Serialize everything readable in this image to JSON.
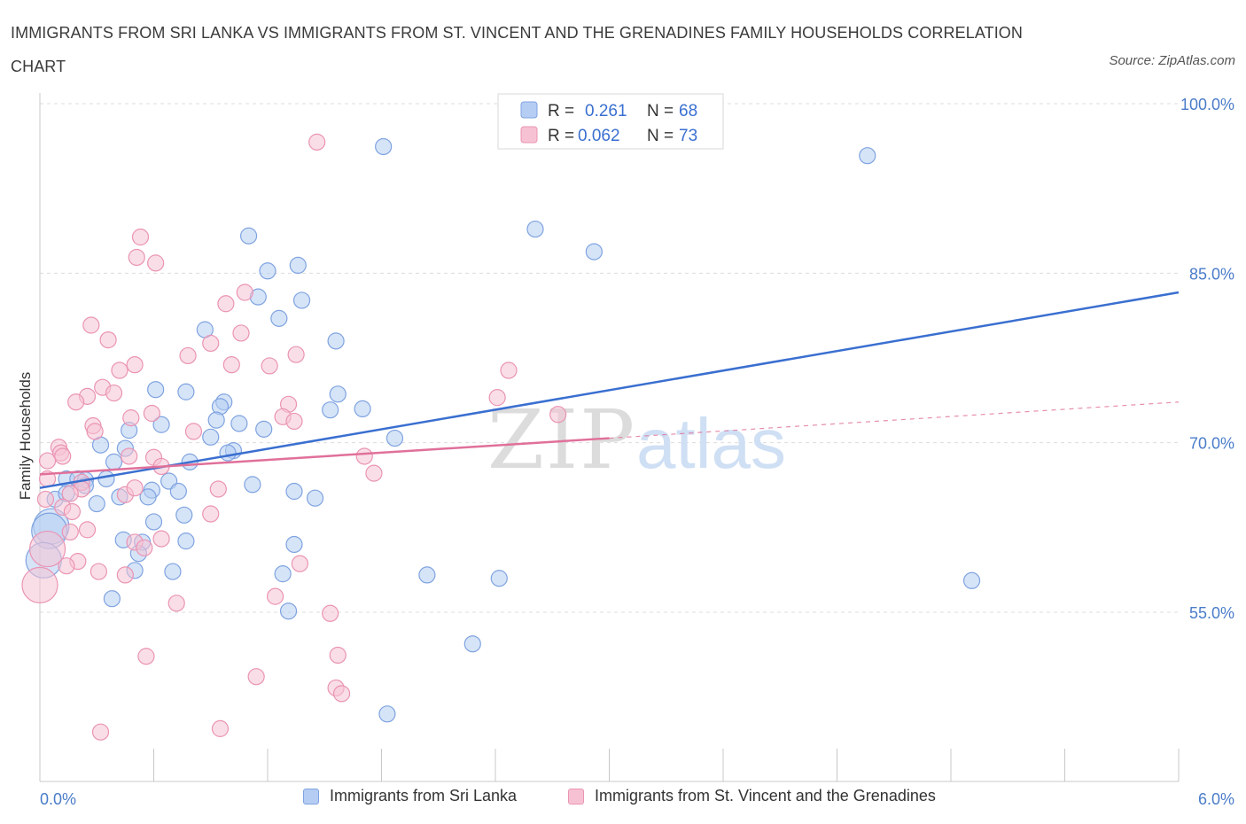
{
  "title": "IMMIGRANTS FROM SRI LANKA VS IMMIGRANTS FROM ST. VINCENT AND THE GRENADINES FAMILY HOUSEHOLDS CORRELATION CHART",
  "source": "Source: ZipAtlas.com",
  "watermark": {
    "zip": "ZIP",
    "atlas": "atlas"
  },
  "colors": {
    "blue": "#3a6fd0",
    "blue_fill": "#b5cdf3",
    "blue_stroke": "#7fa3e0",
    "pink": "#e0709a",
    "pink_fill": "#f6c2d3",
    "pink_stroke": "#ea94b3",
    "grid": "#dcdcdc",
    "tick_text": "#4a7cc9"
  },
  "legend": {
    "rows": [
      {
        "r_label": "R =",
        "r_value": "0.261",
        "n_label": "N =",
        "n_value": "68"
      },
      {
        "r_label": "R =",
        "r_value": "0.062",
        "n_label": "N =",
        "n_value": "73"
      }
    ]
  },
  "bottom_legend": [
    "Immigrants from Sri Lanka",
    "Immigrants from St. Vincent and the Grenadines"
  ],
  "chart_data": {
    "type": "scatter",
    "ylabel": "Family Households",
    "xlim": [
      0,
      6
    ],
    "ylim": [
      40,
      100
    ],
    "x_tick_labels": [
      {
        "value": 0,
        "label": "0.0%"
      },
      {
        "value": 6,
        "label": "6.0%"
      }
    ],
    "y_tick_labels": [
      {
        "value": 55,
        "label": "55.0%"
      },
      {
        "value": 70,
        "label": "70.0%"
      },
      {
        "value": 85,
        "label": "85.0%"
      },
      {
        "value": 100,
        "label": "100.0%"
      }
    ],
    "series": [
      {
        "name": "Immigrants from Sri Lanka",
        "color": "blue",
        "trend": {
          "x": [
            0,
            6
          ],
          "y": [
            66.0,
            83.3
          ]
        },
        "points": [
          [
            1.81,
            96.2
          ],
          [
            4.36,
            95.4
          ],
          [
            2.61,
            88.9
          ],
          [
            1.1,
            88.3
          ],
          [
            2.92,
            86.9
          ],
          [
            1.36,
            85.7
          ],
          [
            1.2,
            85.2
          ],
          [
            1.15,
            82.9
          ],
          [
            1.38,
            82.6
          ],
          [
            1.26,
            81.0
          ],
          [
            0.87,
            80.0
          ],
          [
            1.56,
            79.0
          ],
          [
            0.61,
            74.7
          ],
          [
            0.77,
            74.5
          ],
          [
            1.57,
            74.3
          ],
          [
            0.97,
            73.6
          ],
          [
            0.95,
            73.2
          ],
          [
            1.53,
            72.9
          ],
          [
            0.93,
            72.0
          ],
          [
            1.05,
            71.7
          ],
          [
            0.64,
            71.6
          ],
          [
            0.47,
            71.1
          ],
          [
            1.18,
            71.2
          ],
          [
            0.9,
            70.5
          ],
          [
            1.87,
            70.4
          ],
          [
            0.32,
            69.8
          ],
          [
            1.02,
            69.3
          ],
          [
            0.99,
            69.1
          ],
          [
            0.79,
            68.3
          ],
          [
            0.39,
            68.3
          ],
          [
            0.14,
            66.8
          ],
          [
            0.2,
            66.8
          ],
          [
            0.24,
            66.7
          ],
          [
            0.35,
            66.8
          ],
          [
            0.68,
            66.6
          ],
          [
            0.24,
            66.2
          ],
          [
            0.59,
            65.8
          ],
          [
            0.73,
            65.7
          ],
          [
            1.12,
            66.3
          ],
          [
            1.34,
            65.7
          ],
          [
            0.57,
            65.2
          ],
          [
            0.42,
            65.2
          ],
          [
            1.45,
            65.1
          ],
          [
            0.3,
            64.6
          ],
          [
            0.08,
            65.0
          ],
          [
            0.14,
            65.5
          ],
          [
            0.76,
            63.6
          ],
          [
            0.06,
            62.6
          ],
          [
            0.05,
            62.2
          ],
          [
            0.44,
            61.4
          ],
          [
            0.77,
            61.3
          ],
          [
            0.54,
            61.2
          ],
          [
            1.34,
            61.0
          ],
          [
            0.52,
            60.2
          ],
          [
            0.02,
            59.6
          ],
          [
            0.5,
            58.7
          ],
          [
            0.7,
            58.6
          ],
          [
            1.28,
            58.4
          ],
          [
            2.04,
            58.3
          ],
          [
            2.42,
            58.0
          ],
          [
            4.91,
            57.8
          ],
          [
            0.38,
            56.2
          ],
          [
            1.31,
            55.1
          ],
          [
            2.28,
            52.2
          ],
          [
            1.83,
            46.0
          ],
          [
            0.6,
            63.0
          ],
          [
            1.7,
            73.0
          ],
          [
            0.45,
            69.5
          ]
        ]
      },
      {
        "name": "Immigrants from St. Vincent and the Grenadines",
        "color": "pink",
        "trend": {
          "x": [
            0,
            3.0
          ],
          "y": [
            67.2,
            70.4
          ]
        },
        "trend_ext": {
          "x": [
            3.0,
            6
          ],
          "y": [
            70.4,
            73.6
          ]
        },
        "points": [
          [
            1.46,
            96.6
          ],
          [
            0.53,
            88.2
          ],
          [
            0.51,
            86.4
          ],
          [
            0.61,
            85.9
          ],
          [
            1.08,
            83.3
          ],
          [
            0.98,
            82.3
          ],
          [
            0.27,
            80.4
          ],
          [
            0.36,
            79.1
          ],
          [
            0.9,
            78.8
          ],
          [
            1.06,
            79.7
          ],
          [
            0.78,
            77.7
          ],
          [
            1.35,
            77.8
          ],
          [
            0.5,
            76.9
          ],
          [
            0.42,
            76.4
          ],
          [
            1.01,
            76.9
          ],
          [
            1.21,
            76.8
          ],
          [
            2.47,
            76.4
          ],
          [
            0.33,
            74.9
          ],
          [
            0.25,
            74.1
          ],
          [
            0.39,
            74.4
          ],
          [
            0.19,
            73.6
          ],
          [
            1.31,
            73.4
          ],
          [
            2.41,
            74.0
          ],
          [
            0.59,
            72.6
          ],
          [
            0.48,
            72.2
          ],
          [
            1.28,
            72.3
          ],
          [
            1.34,
            71.9
          ],
          [
            2.73,
            72.5
          ],
          [
            0.28,
            71.5
          ],
          [
            0.29,
            71.0
          ],
          [
            0.81,
            71.0
          ],
          [
            0.1,
            69.6
          ],
          [
            0.11,
            69.1
          ],
          [
            0.12,
            68.8
          ],
          [
            0.47,
            68.8
          ],
          [
            0.6,
            68.7
          ],
          [
            0.04,
            68.4
          ],
          [
            1.71,
            68.8
          ],
          [
            0.64,
            67.9
          ],
          [
            1.76,
            67.3
          ],
          [
            0.04,
            66.8
          ],
          [
            0.22,
            66.5
          ],
          [
            0.22,
            65.9
          ],
          [
            0.16,
            65.5
          ],
          [
            0.45,
            65.4
          ],
          [
            0.5,
            66.0
          ],
          [
            0.94,
            65.9
          ],
          [
            0.03,
            65.0
          ],
          [
            0.12,
            64.3
          ],
          [
            0.17,
            63.9
          ],
          [
            0.9,
            63.7
          ],
          [
            0.25,
            62.3
          ],
          [
            0.16,
            62.1
          ],
          [
            0.64,
            61.5
          ],
          [
            0.5,
            61.2
          ],
          [
            0.55,
            60.7
          ],
          [
            0.04,
            60.6
          ],
          [
            0.2,
            59.5
          ],
          [
            1.37,
            59.3
          ],
          [
            0.14,
            59.1
          ],
          [
            0.31,
            58.6
          ],
          [
            0.45,
            58.3
          ],
          [
            0.0,
            57.4
          ],
          [
            1.24,
            56.4
          ],
          [
            0.72,
            55.8
          ],
          [
            1.53,
            54.9
          ],
          [
            0.56,
            51.1
          ],
          [
            1.57,
            51.2
          ],
          [
            1.14,
            49.3
          ],
          [
            1.56,
            48.3
          ],
          [
            1.59,
            47.8
          ],
          [
            0.32,
            44.4
          ],
          [
            0.95,
            44.7
          ]
        ]
      }
    ]
  }
}
